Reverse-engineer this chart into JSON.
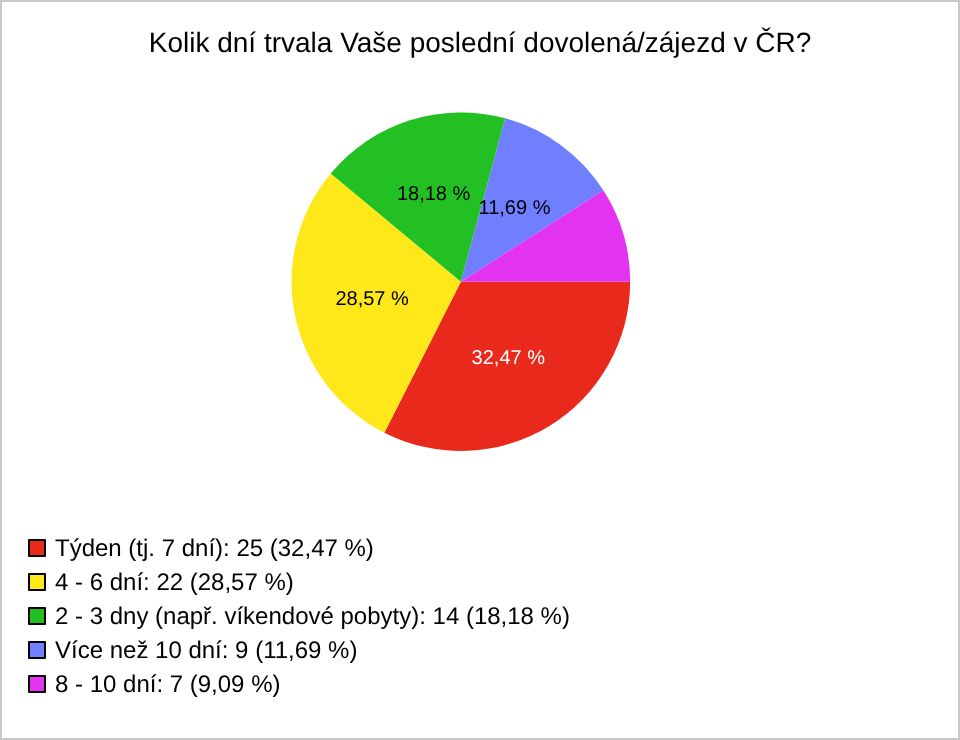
{
  "chart_data": {
    "type": "pie",
    "title": "Kolik dní trvala Vaše poslední dovolená/zájezd v ČR?",
    "categories": [
      "Týden (tj. 7 dní): 25 (32,47 %)",
      "4 - 6 dní: 22 (28,57 %)",
      "2 - 3 dny (např. víkendové pobyty): 14 (18,18 %)",
      "Více než 10 dní: 9 (11,69 %)",
      "8 - 10 dní: 7 (9,09 %)"
    ],
    "values": [
      32.47,
      28.57,
      18.18,
      11.69,
      9.09
    ],
    "colors": [
      "#e8291c",
      "#ffe81a",
      "#22c022",
      "#6f7fff",
      "#e234f0"
    ],
    "value_labels": [
      "32,47 %",
      "28,57 %",
      "18,18 %",
      "11,69 %",
      null
    ],
    "legend": "bottom left"
  }
}
